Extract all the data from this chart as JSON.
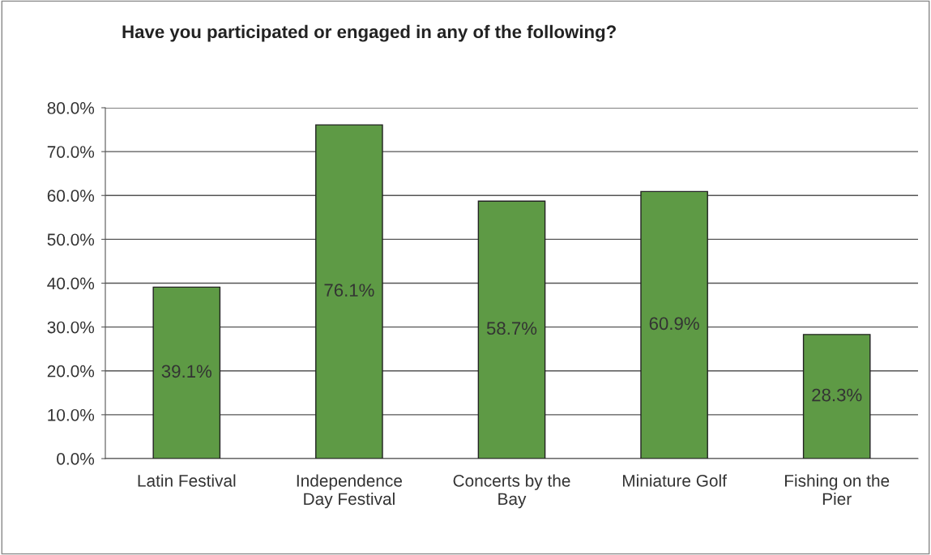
{
  "chart_data": {
    "type": "bar",
    "title": "Have you participated or engaged in any of the following?",
    "categories": [
      "Latin Festival",
      "Independence Day Festival",
      "Concerts by the Bay",
      "Miniature Golf",
      "Fishing on the Pier"
    ],
    "values": [
      39.1,
      76.1,
      58.7,
      60.9,
      28.3
    ],
    "value_labels": [
      "39.1%",
      "76.1%",
      "58.7%",
      "60.9%",
      "28.3%"
    ],
    "color": "#5e9a45",
    "ylim": [
      0,
      80
    ],
    "yticks": [
      {
        "value": 0,
        "label": "0.0%"
      },
      {
        "value": 10,
        "label": "10.0%"
      },
      {
        "value": 20,
        "label": "20.0%"
      },
      {
        "value": 30,
        "label": "30.0%"
      },
      {
        "value": 40,
        "label": "40.0%"
      },
      {
        "value": 50,
        "label": "50.0%"
      },
      {
        "value": 60,
        "label": "60.0%"
      },
      {
        "value": 70,
        "label": "70.0%"
      },
      {
        "value": 80,
        "label": "80.0%"
      }
    ],
    "grid": "y"
  }
}
